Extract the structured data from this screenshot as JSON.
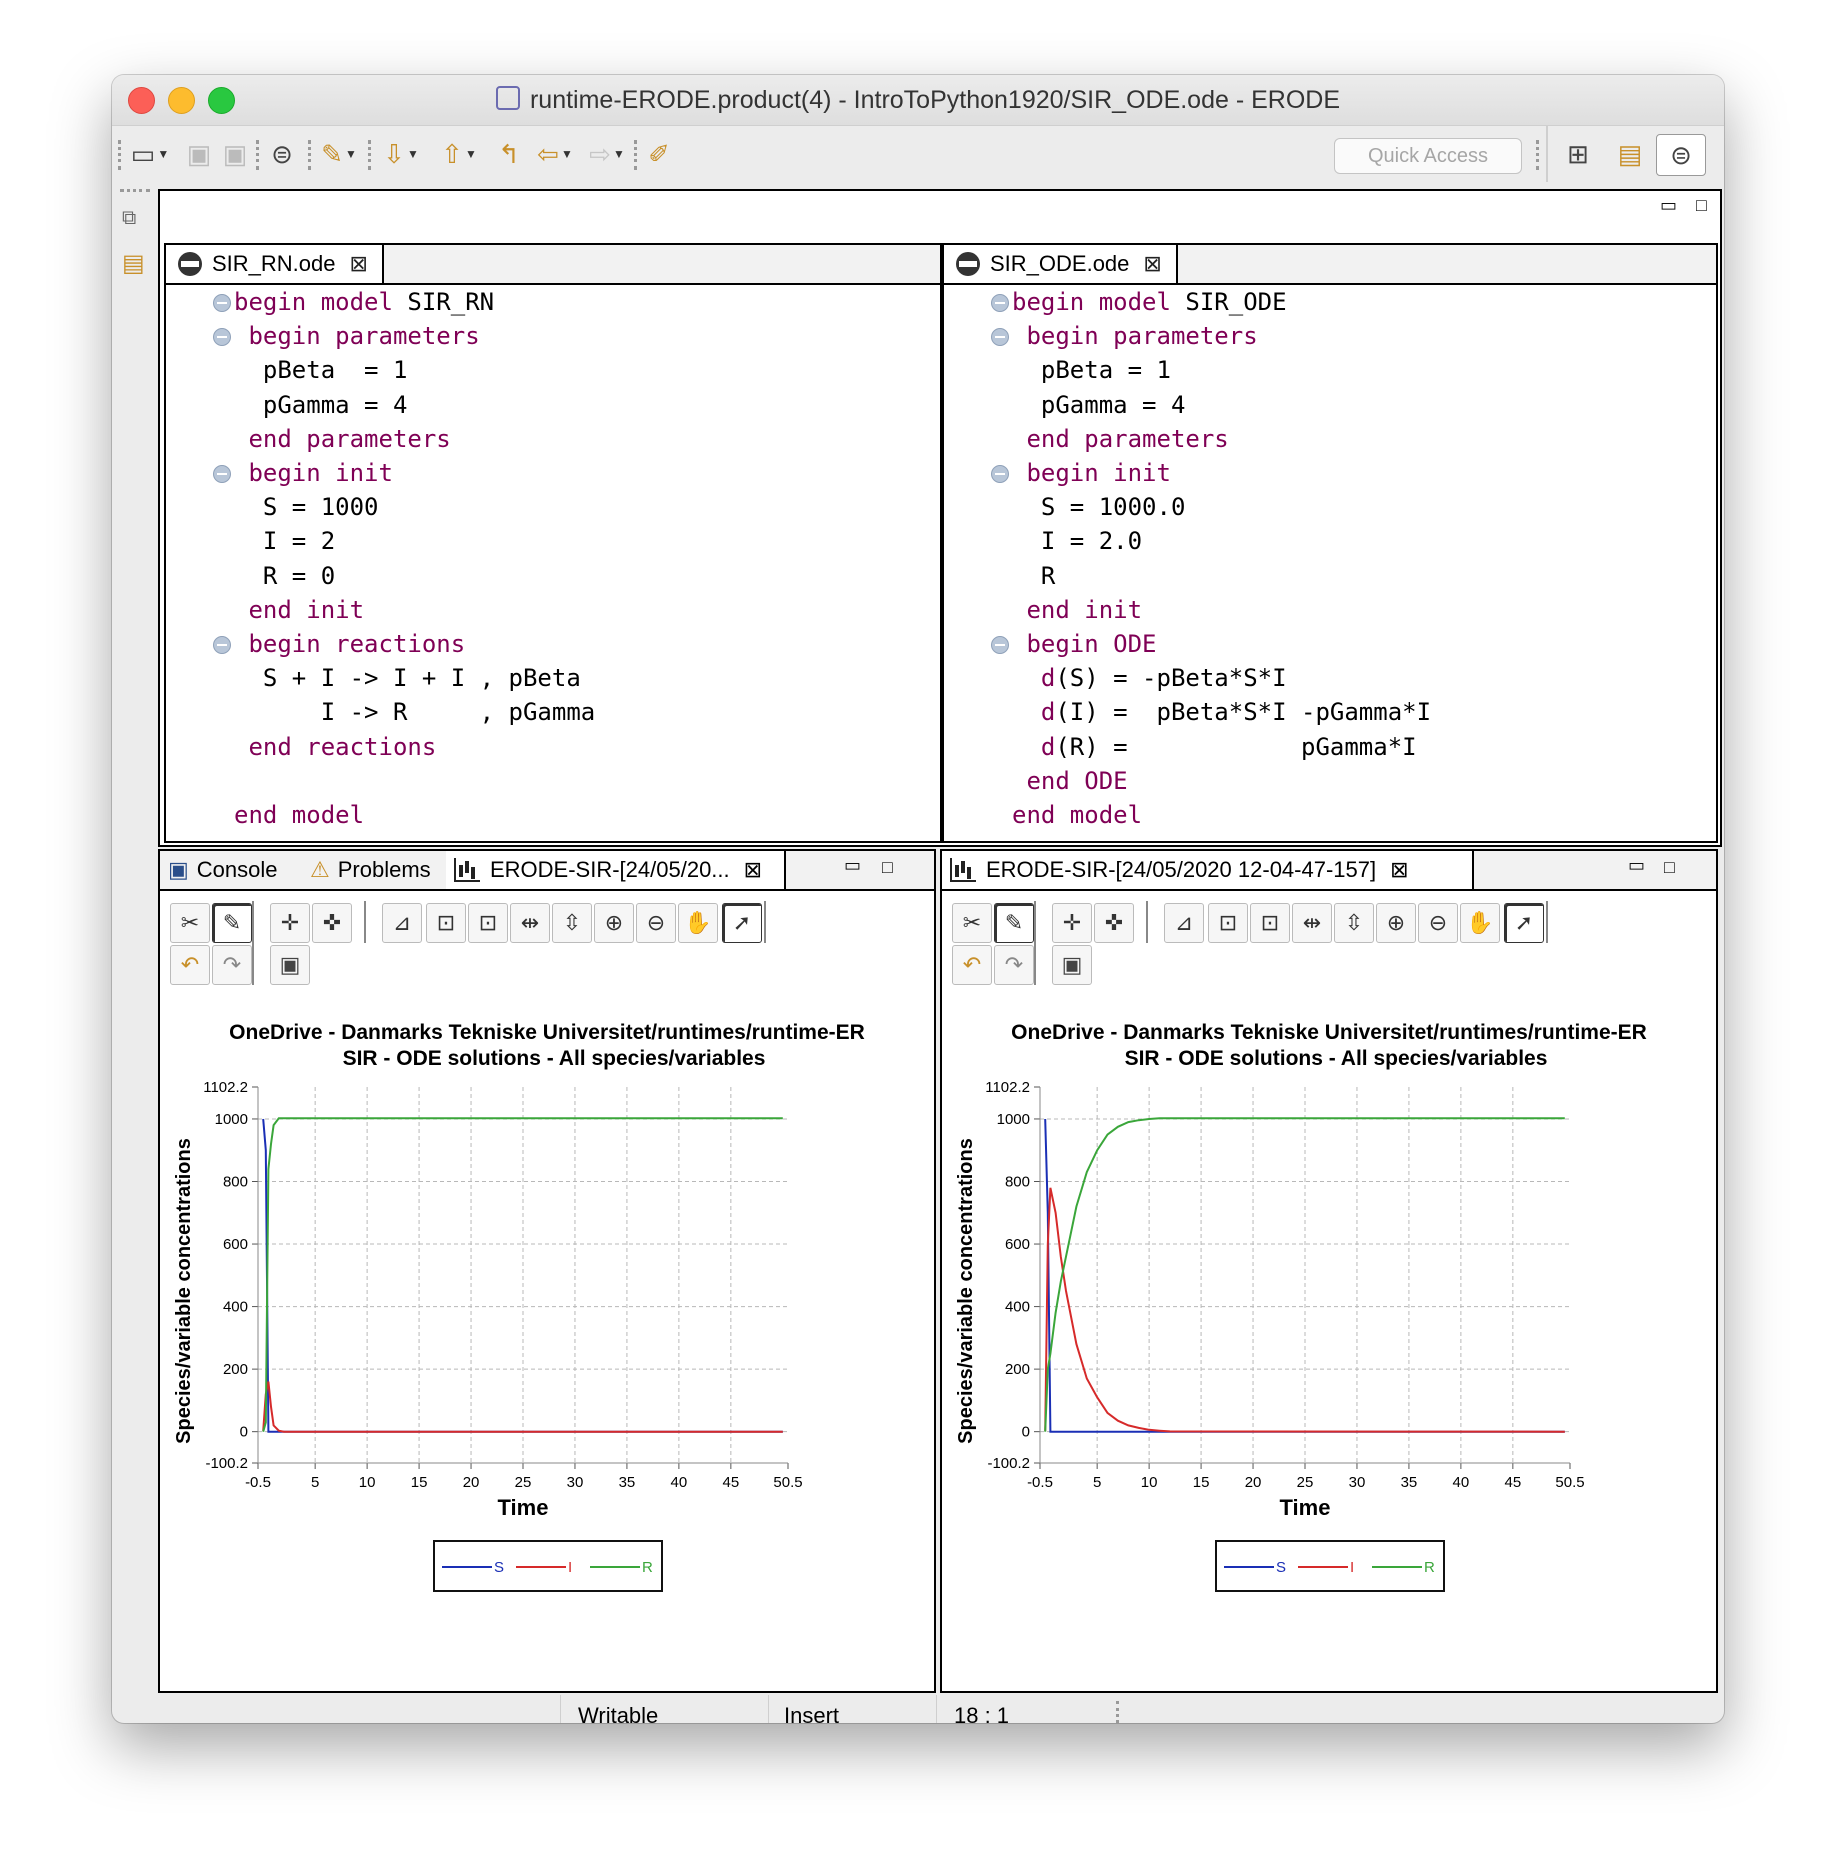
{
  "window": {
    "title": "runtime-ERODE.product(4) - IntroToPython1920/SIR_ODE.ode - ERODE"
  },
  "toolbar": {
    "quick_access_placeholder": "Quick Access",
    "icons": [
      "new-wizard-icon",
      "save-icon",
      "save-all-icon",
      "erode-icon",
      "run-icon",
      "next-annotation-icon",
      "prev-annotation-icon",
      "last-edit-icon",
      "back-icon",
      "forward-icon",
      "highlighter-icon",
      "open-perspective-icon",
      "resource-perspective-icon",
      "erode-perspective-icon"
    ]
  },
  "editors": {
    "left": {
      "tab": "SIR_RN.ode",
      "lines": [
        {
          "fold": true,
          "parts": [
            {
              "k": "kw",
              "t": "begin model "
            },
            {
              "k": "tx",
              "t": "SIR_RN"
            }
          ]
        },
        {
          "fold": true,
          "parts": [
            {
              "k": "kw",
              "t": " begin parameters"
            }
          ]
        },
        {
          "fold": false,
          "parts": [
            {
              "k": "tx",
              "t": "  pBeta  = 1"
            }
          ]
        },
        {
          "fold": false,
          "parts": [
            {
              "k": "tx",
              "t": "  pGamma = 4"
            }
          ]
        },
        {
          "fold": false,
          "parts": [
            {
              "k": "kw",
              "t": " end parameters"
            }
          ]
        },
        {
          "fold": true,
          "parts": [
            {
              "k": "kw",
              "t": " begin init"
            }
          ]
        },
        {
          "fold": false,
          "parts": [
            {
              "k": "tx",
              "t": "  S = 1000"
            }
          ]
        },
        {
          "fold": false,
          "parts": [
            {
              "k": "tx",
              "t": "  I = 2"
            }
          ]
        },
        {
          "fold": false,
          "parts": [
            {
              "k": "tx",
              "t": "  R = 0"
            }
          ]
        },
        {
          "fold": false,
          "parts": [
            {
              "k": "kw",
              "t": " end init"
            }
          ]
        },
        {
          "fold": true,
          "parts": [
            {
              "k": "kw",
              "t": " begin reactions"
            }
          ]
        },
        {
          "fold": false,
          "parts": [
            {
              "k": "tx",
              "t": "  S + I -> I + I , pBeta"
            }
          ]
        },
        {
          "fold": false,
          "parts": [
            {
              "k": "tx",
              "t": "      I -> R     , pGamma"
            }
          ]
        },
        {
          "fold": false,
          "parts": [
            {
              "k": "kw",
              "t": " end reactions"
            }
          ]
        },
        {
          "fold": false,
          "parts": [
            {
              "k": "tx",
              "t": ""
            }
          ]
        },
        {
          "fold": false,
          "parts": [
            {
              "k": "kw",
              "t": "end model"
            }
          ]
        }
      ]
    },
    "right": {
      "tab": "SIR_ODE.ode",
      "lines": [
        {
          "fold": true,
          "parts": [
            {
              "k": "kw",
              "t": "begin model "
            },
            {
              "k": "tx",
              "t": "SIR_ODE"
            }
          ]
        },
        {
          "fold": true,
          "parts": [
            {
              "k": "kw",
              "t": " begin parameters"
            }
          ]
        },
        {
          "fold": false,
          "parts": [
            {
              "k": "tx",
              "t": "  pBeta = 1"
            }
          ]
        },
        {
          "fold": false,
          "parts": [
            {
              "k": "tx",
              "t": "  pGamma = 4"
            }
          ]
        },
        {
          "fold": false,
          "parts": [
            {
              "k": "kw",
              "t": " end parameters"
            }
          ]
        },
        {
          "fold": true,
          "parts": [
            {
              "k": "kw",
              "t": " begin init"
            }
          ]
        },
        {
          "fold": false,
          "parts": [
            {
              "k": "tx",
              "t": "  S = 1000.0"
            }
          ]
        },
        {
          "fold": false,
          "parts": [
            {
              "k": "tx",
              "t": "  I = 2.0"
            }
          ]
        },
        {
          "fold": false,
          "parts": [
            {
              "k": "tx",
              "t": "  R"
            }
          ]
        },
        {
          "fold": false,
          "parts": [
            {
              "k": "kw",
              "t": " end init"
            }
          ]
        },
        {
          "fold": true,
          "parts": [
            {
              "k": "kw",
              "t": " begin ODE"
            }
          ]
        },
        {
          "fold": false,
          "parts": [
            {
              "k": "kw",
              "t": "  d"
            },
            {
              "k": "tx",
              "t": "(S) = -pBeta*S*I"
            }
          ]
        },
        {
          "fold": false,
          "parts": [
            {
              "k": "kw",
              "t": "  d"
            },
            {
              "k": "tx",
              "t": "(I) =  pBeta*S*I -pGamma*I"
            }
          ]
        },
        {
          "fold": false,
          "parts": [
            {
              "k": "kw",
              "t": "  d"
            },
            {
              "k": "tx",
              "t": "(R) =            pGamma*I"
            }
          ]
        },
        {
          "fold": false,
          "parts": [
            {
              "k": "kw",
              "t": " end ODE"
            }
          ]
        },
        {
          "fold": false,
          "parts": [
            {
              "k": "kw",
              "t": "end model"
            }
          ]
        }
      ]
    }
  },
  "views": {
    "left": {
      "tabs": [
        "Console",
        "Problems",
        "ERODE-SIR-[24/05/20..."
      ]
    },
    "right": {
      "tabs": [
        "ERODE-SIR-[24/05/2020 12-04-47-157]"
      ]
    }
  },
  "chart_data": [
    {
      "type": "line",
      "title": "OneDrive - Danmarks Tekniske Universitet/runtimes/runtime-ER",
      "subtitle": "SIR - ODE solutions - All species/variables",
      "xlabel": "Time",
      "ylabel": "Species/variable concentrations",
      "xlim": [
        -0.5,
        50.5
      ],
      "ylim": [
        -100.2,
        1102.2
      ],
      "xticks": [
        "-0.5",
        "5",
        "10",
        "15",
        "20",
        "25",
        "30",
        "35",
        "40",
        "45",
        "50.5"
      ],
      "yticks": [
        "1102.2",
        "1000",
        "800",
        "600",
        "400",
        "200",
        "0",
        "-100.2"
      ],
      "grid": true,
      "legend": "bottom-center",
      "series": [
        {
          "name": "S",
          "color": "#1a2fb5",
          "x": [
            0,
            0.25,
            0.5,
            1,
            50
          ],
          "y": [
            1000,
            900,
            0,
            0,
            0
          ]
        },
        {
          "name": "I",
          "color": "#d62a2a",
          "x": [
            0,
            0.25,
            0.5,
            0.75,
            1,
            1.5,
            2,
            50
          ],
          "y": [
            2,
            120,
            160,
            80,
            20,
            3,
            0,
            0
          ]
        },
        {
          "name": "R",
          "color": "#3aa63a",
          "x": [
            0,
            0.25,
            0.5,
            0.75,
            1,
            1.5,
            2,
            50
          ],
          "y": [
            0,
            30,
            840,
            920,
            980,
            1002,
            1002,
            1002
          ]
        }
      ]
    },
    {
      "type": "line",
      "title": "OneDrive - Danmarks Tekniske Universitet/runtimes/runtime-ER",
      "subtitle": "SIR - ODE solutions - All species/variables",
      "xlabel": "Time",
      "ylabel": "Species/variable concentrations",
      "xlim": [
        -0.5,
        50.5
      ],
      "ylim": [
        -100.2,
        1102.2
      ],
      "xticks": [
        "-0.5",
        "5",
        "10",
        "15",
        "20",
        "25",
        "30",
        "35",
        "40",
        "45",
        "50.5"
      ],
      "yticks": [
        "1102.2",
        "1000",
        "800",
        "600",
        "400",
        "200",
        "0",
        "-100.2"
      ],
      "grid": true,
      "legend": "bottom-center",
      "series": [
        {
          "name": "S",
          "color": "#1a2fb5",
          "x": [
            0,
            0.25,
            0.5,
            1,
            10,
            11,
            50
          ],
          "y": [
            1000,
            700,
            0,
            0,
            0,
            0,
            0
          ]
        },
        {
          "name": "I",
          "color": "#d62a2a",
          "x": [
            0,
            0.25,
            0.5,
            1,
            1.5,
            2,
            3,
            4,
            5,
            6,
            7,
            8,
            9,
            10,
            11,
            12,
            50
          ],
          "y": [
            2,
            600,
            780,
            700,
            560,
            450,
            280,
            170,
            110,
            60,
            35,
            20,
            12,
            6,
            3,
            1,
            0
          ]
        },
        {
          "name": "R",
          "color": "#3aa63a",
          "x": [
            0,
            0.25,
            0.5,
            1,
            1.5,
            2,
            3,
            4,
            5,
            6,
            7,
            8,
            9,
            10,
            11,
            12,
            50
          ],
          "y": [
            0,
            200,
            250,
            380,
            480,
            560,
            720,
            830,
            900,
            950,
            975,
            990,
            996,
            1000,
            1002,
            1002,
            1002
          ]
        }
      ]
    }
  ],
  "status": {
    "writable": "Writable",
    "insert": "Insert",
    "position": "18 : 1"
  }
}
